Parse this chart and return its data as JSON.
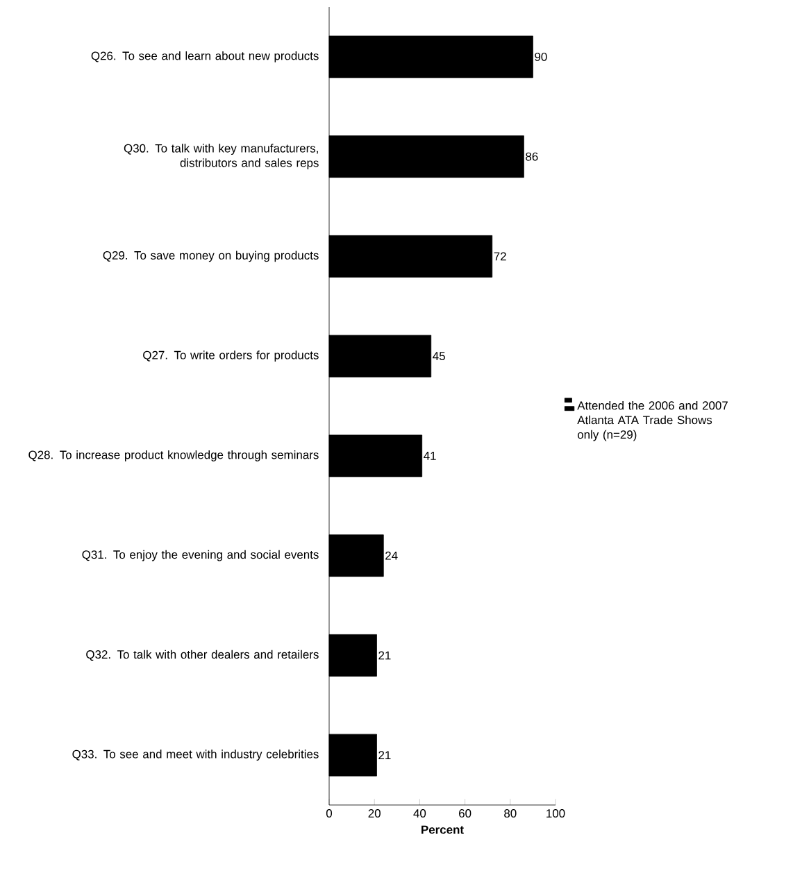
{
  "chart_data": {
    "type": "bar",
    "orientation": "horizontal",
    "categories": [
      "Q26. To see and learn about new products",
      "Q30. To talk with key manufacturers, distributors and sales reps",
      "Q29. To save money on buying products",
      "Q27. To write orders for products",
      "Q28. To increase product knowledge through seminars",
      "Q31. To enjoy the evening and social events",
      "Q32. To talk with other dealers and retailers",
      "Q33. To see and meet with industry celebrities"
    ],
    "series": [
      {
        "name": "Attended the 2006 and 2007 Atlanta ATA Trade Shows only (n=29)",
        "color": "#000000",
        "values": [
          90,
          86,
          72,
          45,
          41,
          24,
          21,
          21
        ]
      }
    ],
    "xlim": [
      0,
      100
    ],
    "xticks": [
      0,
      20,
      40,
      60,
      80,
      100
    ],
    "xlabel": "Percent",
    "data_labels": true,
    "legend": "right",
    "grid": false
  }
}
